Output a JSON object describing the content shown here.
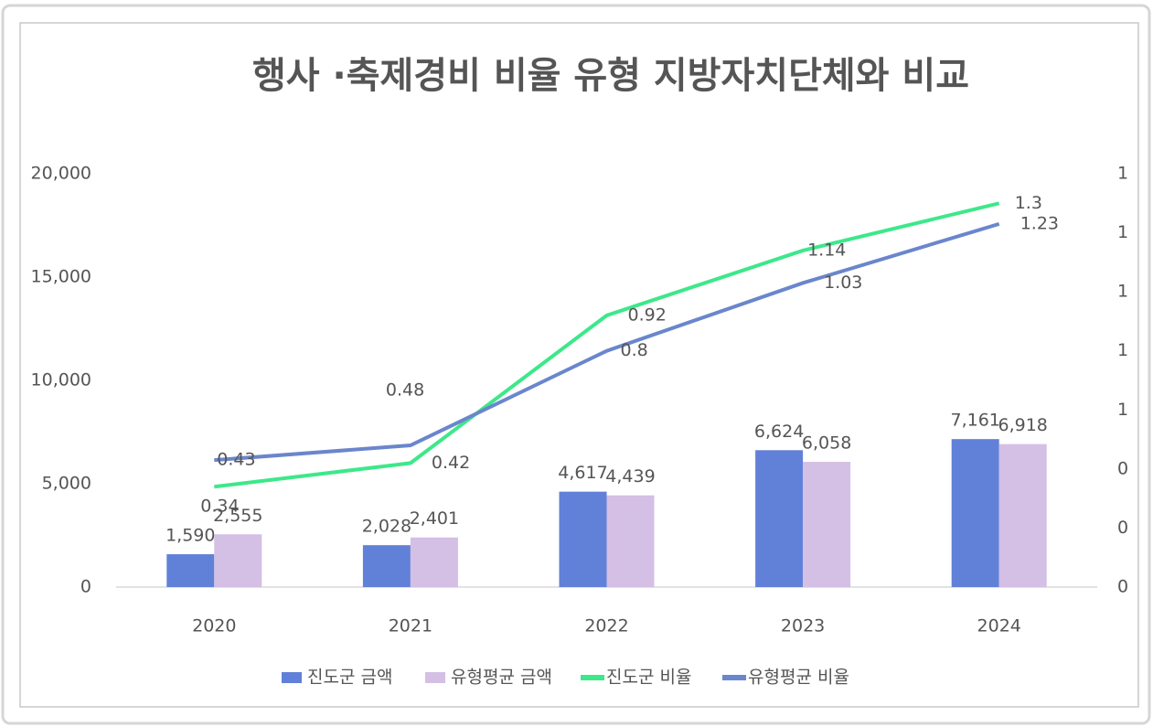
{
  "chart_data": {
    "type": "bar_line",
    "title": "행사 ·축제경비 비율 유형 지방자치단체와 비교",
    "categories": [
      "2020",
      "2021",
      "2022",
      "2023",
      "2024"
    ],
    "series": [
      {
        "name": "진도군 금액",
        "type": "bar",
        "color": "#6181d8",
        "values": [
          1590,
          2028,
          4617,
          6624,
          7161
        ],
        "value_labels": [
          "1,590",
          "2,028",
          "4,617",
          "6,624",
          "7,161"
        ]
      },
      {
        "name": "유형평균 금액",
        "type": "bar",
        "color": "#d4bfe5",
        "values": [
          2555,
          2401,
          4439,
          6058,
          6918
        ],
        "value_labels": [
          "2,555",
          "2,401",
          "4,439",
          "6,058",
          "6,918"
        ]
      },
      {
        "name": "진도군 비율",
        "type": "line",
        "axis": "y2",
        "color": "#3de88a",
        "values": [
          0.34,
          0.42,
          0.92,
          1.14,
          1.3
        ]
      },
      {
        "name": "유형평균 비율",
        "type": "line",
        "axis": "y2",
        "color": "#6a86cc",
        "values": [
          0.43,
          0.48,
          0.8,
          1.03,
          1.23
        ]
      }
    ],
    "ylim": [
      0,
      20000
    ],
    "yticks": [
      0,
      {
        "value": 5000,
        "label": "5,000"
      },
      {
        "value": 10000,
        "label": "10,000"
      },
      {
        "value": 15000,
        "label": "15,000"
      },
      {
        "value": 20000,
        "label": "20,000"
      }
    ],
    "y2lim": [
      0,
      1.4
    ],
    "y2ticks": [
      0,
      {
        "value": 0.2,
        "label": "0"
      },
      {
        "value": 0.4,
        "label": "0"
      },
      {
        "value": 0.6,
        "label": "1"
      },
      {
        "value": 0.8,
        "label": "1"
      },
      {
        "value": 1.0,
        "label": "1"
      },
      {
        "value": 1.2,
        "label": "1"
      },
      {
        "value": 1.4,
        "label": "1"
      }
    ],
    "legend": "bottom"
  }
}
